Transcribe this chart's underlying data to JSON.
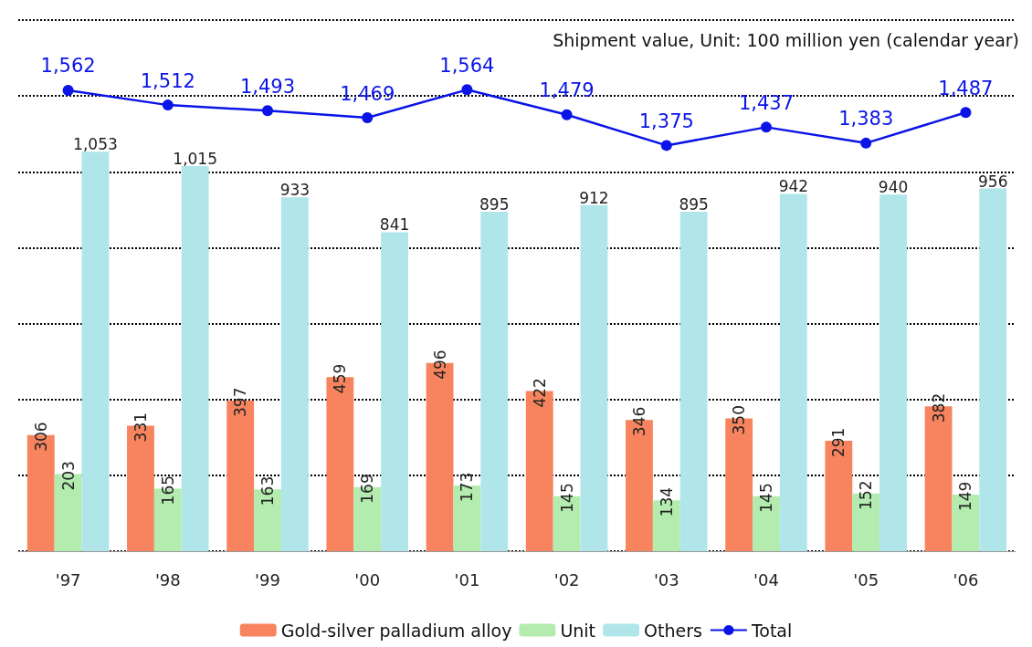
{
  "chart_data": {
    "type": "bar",
    "categories": [
      "'97",
      "'98",
      "'99",
      "'00",
      "'01",
      "'02",
      "'03",
      "'04",
      "'05",
      "'06"
    ],
    "series": [
      {
        "name": "Gold-silver palladium alloy",
        "color": "#f7845e",
        "values": [
          306,
          331,
          397,
          459,
          496,
          422,
          346,
          350,
          291,
          382
        ]
      },
      {
        "name": "Unit",
        "color": "#b4ecb0",
        "values": [
          203,
          165,
          163,
          169,
          173,
          145,
          134,
          145,
          152,
          149
        ]
      },
      {
        "name": "Others",
        "color": "#b0e6ea",
        "values": [
          1053,
          1015,
          933,
          841,
          895,
          912,
          895,
          942,
          940,
          956
        ],
        "value_labels": [
          "1,053",
          "1,015",
          "933",
          "841",
          "895",
          "912",
          "895",
          "942",
          "940",
          "956"
        ]
      },
      {
        "name": "Total",
        "type": "line",
        "axis": "y2",
        "color": "#0a14e6",
        "marker": "circle",
        "values": [
          1562,
          1512,
          1493,
          1469,
          1564,
          1479,
          1375,
          1437,
          1383,
          1487
        ],
        "value_labels": [
          "1,562",
          "1,512",
          "1,493",
          "1,469",
          "1,564",
          "1,479",
          "1,375",
          "1,437",
          "1,383",
          "1,487"
        ]
      }
    ],
    "ylim": [
      0,
      1400
    ],
    "yticks": [
      {
        "value": 0,
        "label": null
      },
      {
        "value": 200,
        "label": null
      },
      {
        "value": 400,
        "label": null
      },
      {
        "value": 600,
        "label": null
      },
      {
        "value": 800,
        "label": null
      },
      {
        "value": 1000,
        "label": null
      },
      {
        "value": 1200,
        "label": null
      },
      {
        "value": 1400,
        "label": null
      }
    ],
    "grid": "y",
    "tick_labels": "x",
    "data_labels": true,
    "legend": "bottom",
    "annotations": [
      "Shipment value, Unit: 100 million yen (calendar year)"
    ]
  }
}
